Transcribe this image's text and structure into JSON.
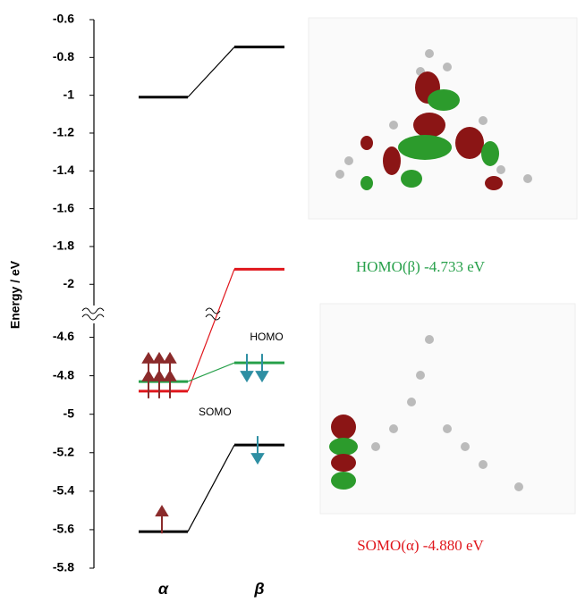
{
  "chart_data": {
    "type": "energy-level",
    "ylabel": "Energy / eV",
    "categories": [
      "α",
      "β"
    ],
    "axis_segments": [
      {
        "ylim": [
          -2.15,
          -0.6
        ],
        "yticks": [
          -0.6,
          -0.8,
          -1,
          -1.2,
          -1.4,
          -1.6,
          -1.8,
          -2
        ]
      },
      {
        "ylim": [
          -5.8,
          -4.5
        ],
        "yticks": [
          -4.6,
          -4.8,
          -5,
          -5.2,
          -5.4,
          -5.6,
          -5.8
        ]
      }
    ],
    "series": [
      {
        "color": "#000000",
        "values": [
          -1.01,
          -0.745
        ]
      },
      {
        "color": "#e0161c",
        "values": [
          -4.88,
          -1.92
        ]
      },
      {
        "color": "#27a04a",
        "values": [
          -4.83,
          -4.733
        ]
      },
      {
        "color": "#000000",
        "values": [
          -5.61,
          -5.16
        ]
      }
    ],
    "annotations": [
      {
        "text": "HOMO"
      },
      {
        "text": "SOMO"
      },
      {
        "text": "HOMO(β) -4.733 eV",
        "color": "#27a04a"
      },
      {
        "text": "SOMO(α) -4.880 eV",
        "color": "#e0161c"
      }
    ]
  }
}
